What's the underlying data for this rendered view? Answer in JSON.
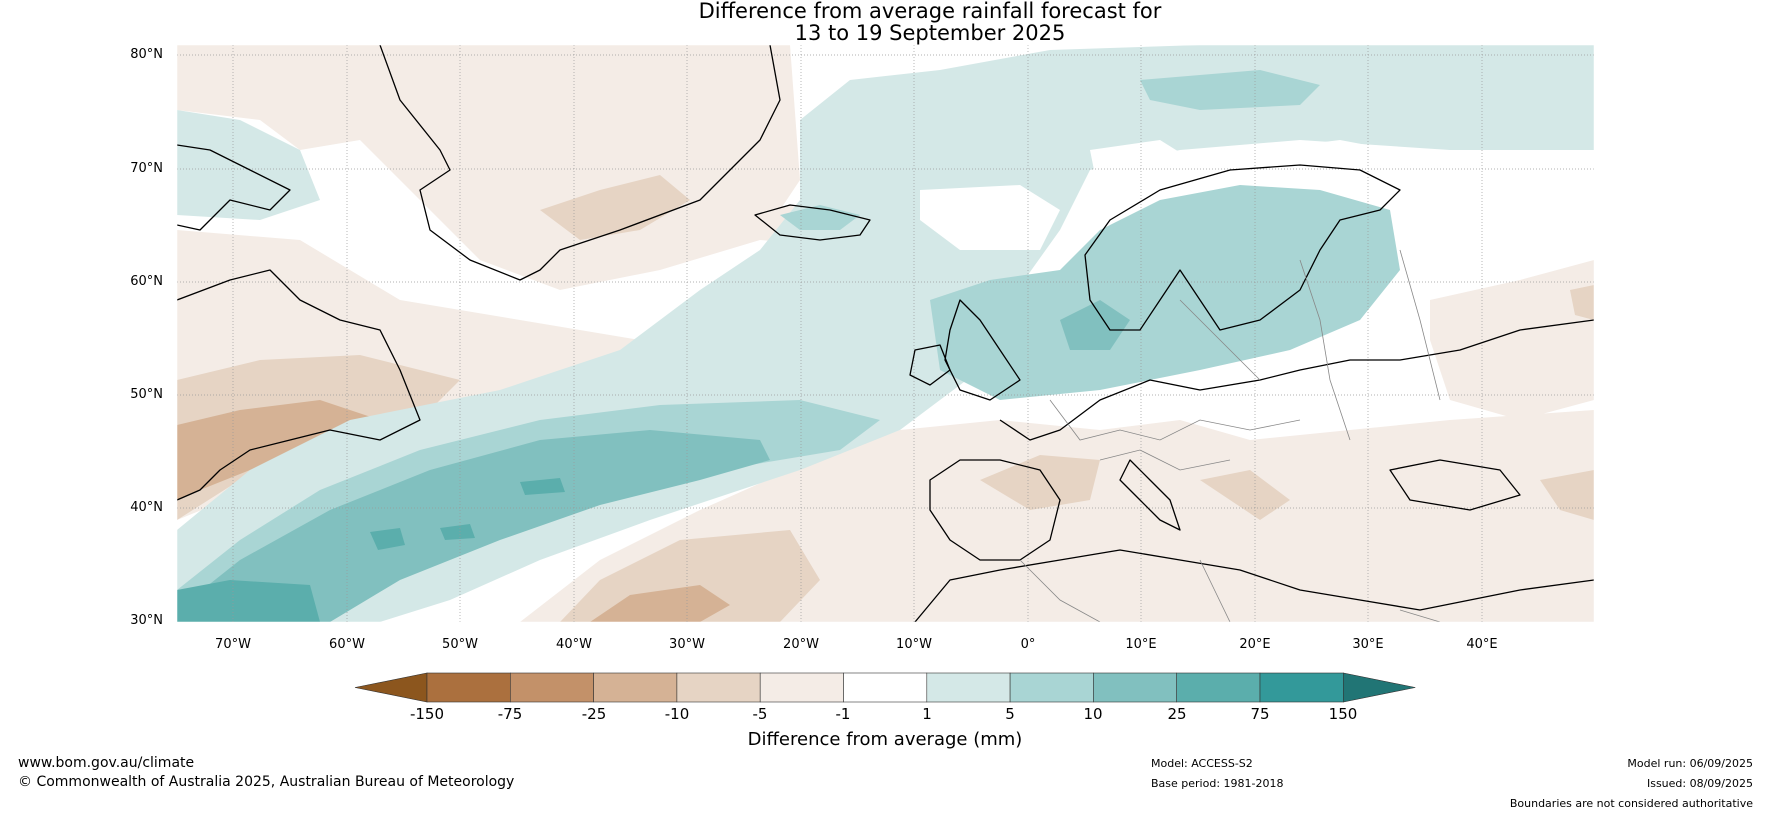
{
  "title": {
    "line1": "Difference from average rainfall forecast for",
    "line2": "13 to 19 September 2025"
  },
  "map": {
    "lat_labels": [
      "80°N",
      "70°N",
      "60°N",
      "50°N",
      "40°N",
      "30°N"
    ],
    "lon_labels": [
      "70°W",
      "60°W",
      "50°W",
      "40°W",
      "30°W",
      "20°W",
      "10°W",
      "0°",
      "10°E",
      "20°E",
      "30°E",
      "40°E"
    ],
    "lat_range": [
      30,
      81
    ],
    "lon_range": [
      -75,
      50
    ]
  },
  "colorbar": {
    "tick_labels": [
      "-150",
      "-75",
      "-25",
      "-10",
      "-5",
      "-1",
      "1",
      "5",
      "10",
      "25",
      "75",
      "150"
    ],
    "colors": [
      "#8c561e",
      "#ab703e",
      "#c39169",
      "#d5b295",
      "#e6d4c4",
      "#f4ece6",
      "#ffffff",
      "#d4e8e7",
      "#a9d5d4",
      "#81c0bf",
      "#5baeac",
      "#33999a",
      "#217575"
    ],
    "title": "Difference from average (mm)"
  },
  "footer": {
    "website": "www.bom.gov.au/climate",
    "copyright": "© Commonwealth of Australia 2025, Australian Bureau of Meteorology",
    "model": "Model: ACCESS-S2",
    "base_period": "Base period: 1981-2018",
    "model_run": "Model run: 06/09/2025",
    "issued": "Issued: 08/09/2025",
    "disclaimer": "Boundaries are not considered authoritative"
  }
}
